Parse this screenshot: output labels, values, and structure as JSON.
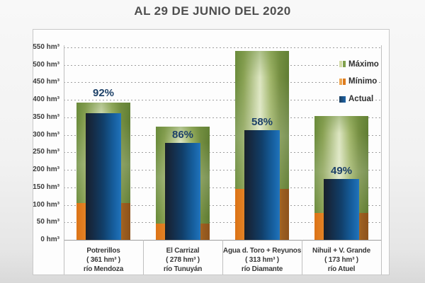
{
  "title": "AL 29 DE JUNIO DEL 2020",
  "colors": {
    "maximo_green": "#7a9a45",
    "maximo_light": "#dde6c2",
    "minimo_orange": "#dd7b1d",
    "actual_blue": "#1e65a8",
    "actual_dark": "#18202b",
    "percent_text": "#1d4168",
    "title_text": "#4f4f4f",
    "grid": "#9e9e9e",
    "panel_bg": "#fdfdfd",
    "panel_border": "#c8c8c8"
  },
  "legend": [
    {
      "key": "maximo",
      "label": "Máximo",
      "swatch": [
        "#d3dba6",
        "#7fa04c"
      ]
    },
    {
      "key": "minimo",
      "label": "Mínimo",
      "swatch": [
        "#efa853",
        "#dd7b1d"
      ]
    },
    {
      "key": "actual",
      "label": "Actual",
      "swatch": [
        "#1c3e5f",
        "#1e65a8"
      ]
    }
  ],
  "chart_data": {
    "type": "bar",
    "title": "AL 29 DE JUNIO DEL 2020",
    "unit": "hm³",
    "grid": "dashed-horizontal",
    "legend_position": "top-right",
    "y_axis": {
      "min": 0,
      "max": 550,
      "step": 50,
      "tick_suffix": " hm³"
    },
    "categories": [
      {
        "name": "Potrerillos",
        "volume": "( 361 hm³ )",
        "river": "río Mendoza"
      },
      {
        "name": "El Carrizal",
        "volume": "( 278 hm³ )",
        "river": "río Tunuyán"
      },
      {
        "name": "Agua d. Toro + Reyunos",
        "volume": "( 313 hm³ )",
        "river": "río Diamante"
      },
      {
        "name": "Nihuil + V. Grande",
        "volume": "( 173 hm³ )",
        "river": "río Atuel"
      }
    ],
    "series": [
      {
        "name": "Máximo",
        "role": "maximo",
        "values": [
          392,
          323,
          540,
          353
        ]
      },
      {
        "name": "Mínimo",
        "role": "minimo",
        "values": [
          105,
          47,
          146,
          77
        ]
      },
      {
        "name": "Actual",
        "role": "actual",
        "values": [
          361,
          278,
          313,
          173
        ]
      }
    ],
    "percent_labels": [
      {
        "text": "92%",
        "placement": "above"
      },
      {
        "text": "86%",
        "placement": "inside"
      },
      {
        "text": "58%",
        "placement": "inside"
      },
      {
        "text": "49%",
        "placement": "inside"
      }
    ]
  }
}
